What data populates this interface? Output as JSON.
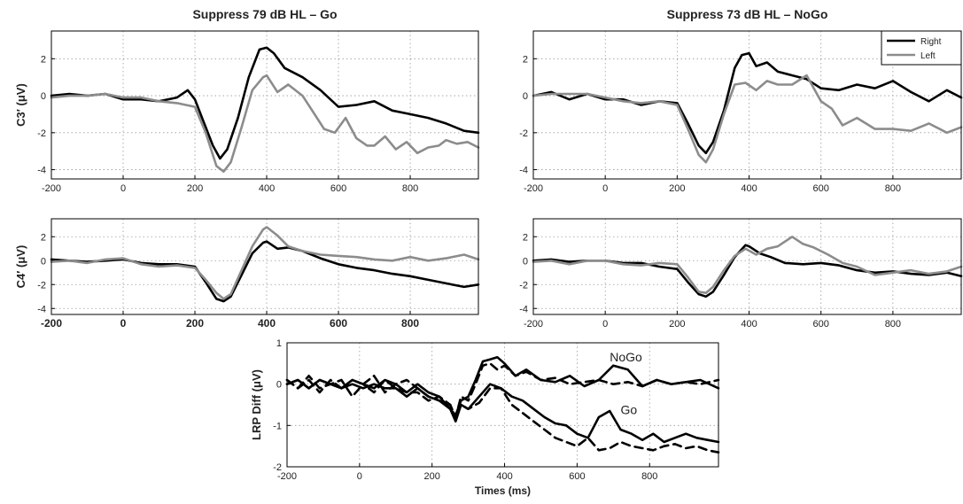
{
  "chart_data": [
    {
      "id": "p1",
      "type": "line",
      "title": "Suppress 79 dB HL – Go",
      "ylabel": "C3′ (μV)",
      "xlim": [
        -200,
        990
      ],
      "ylim": [
        -4.5,
        3.5
      ],
      "xticks": [
        -200,
        0,
        200,
        400,
        600,
        800
      ],
      "yticks": [
        -4,
        -2,
        0,
        2
      ],
      "grid": true,
      "series": [
        {
          "name": "Right",
          "color": "#000000",
          "dash": "solid",
          "x": [
            -200,
            -150,
            -100,
            -50,
            0,
            50,
            100,
            150,
            180,
            200,
            220,
            250,
            270,
            290,
            320,
            350,
            380,
            400,
            420,
            450,
            500,
            550,
            600,
            650,
            700,
            750,
            800,
            850,
            900,
            950,
            990
          ],
          "y": [
            0,
            0.1,
            0,
            0.1,
            -0.2,
            -0.2,
            -0.3,
            -0.1,
            0.3,
            -0.2,
            -1.2,
            -2.7,
            -3.4,
            -2.9,
            -1.2,
            1.0,
            2.5,
            2.6,
            2.3,
            1.5,
            1.0,
            0.3,
            -0.6,
            -0.5,
            -0.3,
            -0.8,
            -1.0,
            -1.2,
            -1.5,
            -1.9,
            -2.0
          ]
        },
        {
          "name": "Left",
          "color": "#8c8c8c",
          "dash": "solid",
          "x": [
            -200,
            -150,
            -100,
            -50,
            0,
            50,
            100,
            150,
            200,
            230,
            260,
            280,
            300,
            330,
            360,
            390,
            400,
            430,
            460,
            500,
            530,
            560,
            590,
            620,
            650,
            680,
            700,
            730,
            760,
            790,
            820,
            850,
            880,
            900,
            930,
            960,
            990
          ],
          "y": [
            -0.1,
            0,
            0,
            0.1,
            -0.1,
            -0.1,
            -0.3,
            -0.4,
            -0.6,
            -2.0,
            -3.8,
            -4.1,
            -3.6,
            -1.7,
            0.3,
            1.0,
            1.1,
            0.2,
            0.6,
            0.0,
            -0.9,
            -1.8,
            -2.0,
            -1.2,
            -2.3,
            -2.7,
            -2.7,
            -2.2,
            -2.9,
            -2.5,
            -3.1,
            -2.8,
            -2.7,
            -2.4,
            -2.6,
            -2.5,
            -2.8
          ]
        }
      ]
    },
    {
      "id": "p2",
      "type": "line",
      "title": "Suppress 73 dB HL – NoGo",
      "xlim": [
        -200,
        990
      ],
      "ylim": [
        -4.5,
        3.5
      ],
      "xticks": [
        -200,
        0,
        200,
        400,
        600,
        800
      ],
      "yticks": [
        -4,
        -2,
        0,
        2
      ],
      "grid": true,
      "legend": {
        "position": "top-right",
        "entries": [
          {
            "label": "Right",
            "color": "#000000"
          },
          {
            "label": "Left",
            "color": "#8c8c8c"
          }
        ]
      },
      "series": [
        {
          "name": "Right",
          "color": "#000000",
          "dash": "solid",
          "x": [
            -200,
            -150,
            -100,
            -50,
            0,
            50,
            100,
            150,
            200,
            230,
            260,
            280,
            300,
            330,
            360,
            380,
            400,
            420,
            450,
            480,
            520,
            560,
            600,
            650,
            700,
            750,
            800,
            850,
            900,
            950,
            990
          ],
          "y": [
            0,
            0.2,
            -0.2,
            0.1,
            -0.2,
            -0.2,
            -0.5,
            -0.3,
            -0.4,
            -1.5,
            -2.7,
            -3.1,
            -2.5,
            -0.8,
            1.5,
            2.2,
            2.3,
            1.6,
            1.8,
            1.3,
            1.1,
            0.9,
            0.4,
            0.3,
            0.6,
            0.4,
            0.8,
            0.2,
            -0.3,
            0.3,
            -0.1
          ]
        },
        {
          "name": "Left",
          "color": "#8c8c8c",
          "dash": "solid",
          "x": [
            -200,
            -150,
            -100,
            -50,
            0,
            50,
            100,
            150,
            200,
            230,
            260,
            280,
            300,
            330,
            360,
            390,
            420,
            450,
            480,
            520,
            560,
            600,
            630,
            660,
            700,
            750,
            800,
            850,
            900,
            950,
            990
          ],
          "y": [
            0,
            0.1,
            0.1,
            0.1,
            -0.1,
            -0.3,
            -0.4,
            -0.3,
            -0.5,
            -1.8,
            -3.2,
            -3.6,
            -2.9,
            -1.0,
            0.6,
            0.7,
            0.3,
            0.8,
            0.6,
            0.6,
            1.1,
            -0.3,
            -0.7,
            -1.6,
            -1.2,
            -1.8,
            -1.8,
            -1.9,
            -1.5,
            -2.0,
            -1.7
          ]
        }
      ]
    },
    {
      "id": "p3",
      "type": "line",
      "ylabel": "C4′ (μV)",
      "xlim": [
        -200,
        990
      ],
      "ylim": [
        -4.5,
        3.5
      ],
      "xticks": [
        -200,
        0,
        200,
        400,
        600,
        800
      ],
      "yticks": [
        -4,
        -2,
        0,
        2
      ],
      "grid": true,
      "series": [
        {
          "name": "Right",
          "color": "#000000",
          "dash": "solid",
          "x": [
            -200,
            -150,
            -100,
            -50,
            0,
            50,
            100,
            150,
            200,
            230,
            260,
            280,
            300,
            330,
            360,
            390,
            400,
            430,
            460,
            500,
            550,
            600,
            650,
            700,
            750,
            800,
            850,
            900,
            950,
            990
          ],
          "y": [
            0.1,
            0,
            -0.1,
            0,
            0.1,
            -0.2,
            -0.3,
            -0.3,
            -0.5,
            -1.8,
            -3.2,
            -3.4,
            -3.0,
            -1.2,
            0.6,
            1.5,
            1.6,
            1.0,
            1.1,
            0.8,
            0.2,
            -0.3,
            -0.6,
            -0.8,
            -1.1,
            -1.3,
            -1.6,
            -1.9,
            -2.2,
            -2.0
          ]
        },
        {
          "name": "Left",
          "color": "#8c8c8c",
          "dash": "solid",
          "x": [
            -200,
            -150,
            -100,
            -50,
            0,
            50,
            100,
            150,
            200,
            230,
            260,
            280,
            300,
            330,
            360,
            390,
            400,
            430,
            460,
            500,
            550,
            600,
            650,
            700,
            750,
            800,
            850,
            900,
            950,
            990
          ],
          "y": [
            -0.1,
            0,
            -0.2,
            0.1,
            0.2,
            -0.3,
            -0.5,
            -0.4,
            -0.6,
            -1.6,
            -2.7,
            -3.2,
            -2.8,
            -0.8,
            1.2,
            2.6,
            2.8,
            2.1,
            1.2,
            0.8,
            0.5,
            0.4,
            0.3,
            0.1,
            0,
            0.3,
            0.0,
            0.2,
            0.5,
            0.1
          ]
        }
      ]
    },
    {
      "id": "p4",
      "type": "line",
      "xlim": [
        -200,
        990
      ],
      "ylim": [
        -4.5,
        3.5
      ],
      "xticks": [
        -200,
        0,
        200,
        400,
        600,
        800
      ],
      "yticks": [
        -4,
        -2,
        0,
        2
      ],
      "grid": true,
      "series": [
        {
          "name": "Right",
          "color": "#000000",
          "dash": "solid",
          "x": [
            -200,
            -150,
            -100,
            -50,
            0,
            50,
            100,
            150,
            200,
            230,
            260,
            280,
            300,
            330,
            360,
            390,
            400,
            430,
            460,
            500,
            550,
            600,
            650,
            700,
            750,
            800,
            850,
            900,
            950,
            990
          ],
          "y": [
            0,
            0.1,
            -0.1,
            0,
            0,
            -0.2,
            -0.2,
            -0.5,
            -0.7,
            -1.8,
            -2.8,
            -3.0,
            -2.6,
            -1.2,
            0.3,
            1.3,
            1.2,
            0.6,
            0.3,
            -0.2,
            -0.3,
            -0.2,
            -0.4,
            -0.8,
            -1.0,
            -0.9,
            -1.1,
            -1.2,
            -1.0,
            -1.3
          ]
        },
        {
          "name": "Left",
          "color": "#8c8c8c",
          "dash": "solid",
          "x": [
            -200,
            -150,
            -100,
            -50,
            0,
            50,
            100,
            150,
            200,
            230,
            260,
            280,
            300,
            330,
            360,
            390,
            420,
            450,
            480,
            510,
            520,
            550,
            580,
            620,
            660,
            700,
            750,
            800,
            850,
            900,
            950,
            990
          ],
          "y": [
            -0.1,
            0,
            -0.3,
            0,
            0,
            -0.3,
            -0.4,
            -0.2,
            -0.3,
            -1.4,
            -2.6,
            -2.7,
            -2.2,
            -0.8,
            0.4,
            1.0,
            0.5,
            1.0,
            1.2,
            1.8,
            2.0,
            1.4,
            1.1,
            0.5,
            -0.2,
            -0.5,
            -1.2,
            -1.0,
            -0.8,
            -1.1,
            -0.9,
            -0.5
          ]
        }
      ]
    },
    {
      "id": "p5",
      "type": "line",
      "xlabel": "Times (ms)",
      "ylabel": "LRP Diff (μV)",
      "xlim": [
        -200,
        990
      ],
      "ylim": [
        -2,
        1
      ],
      "xticks": [
        -200,
        0,
        200,
        400,
        600,
        800
      ],
      "yticks": [
        -2,
        -1,
        0,
        1
      ],
      "grid": true,
      "annotations": [
        {
          "text": "NoGo",
          "x": 690,
          "y": 0.55
        },
        {
          "text": "Go",
          "x": 720,
          "y": -0.72
        }
      ],
      "series": [
        {
          "name": "NoGo",
          "color": "#000000",
          "dash": "solid",
          "x": [
            -200,
            -170,
            -140,
            -110,
            -80,
            -50,
            -20,
            10,
            40,
            70,
            100,
            130,
            160,
            190,
            220,
            250,
            265,
            280,
            300,
            320,
            340,
            360,
            380,
            400,
            430,
            460,
            500,
            540,
            580,
            620,
            660,
            700,
            740,
            780,
            820,
            860,
            900,
            940,
            990
          ],
          "y": [
            0,
            0.1,
            -0.1,
            0.1,
            0,
            -0.1,
            0.1,
            0,
            -0.1,
            0.1,
            0,
            -0.2,
            0,
            -0.2,
            -0.3,
            -0.6,
            -0.75,
            -0.4,
            -0.3,
            0.1,
            0.55,
            0.6,
            0.65,
            0.5,
            0.2,
            0.35,
            0.1,
            0.05,
            0.2,
            -0.05,
            0.1,
            0.45,
            0.35,
            -0.05,
            0.1,
            0,
            0.05,
            0.1,
            -0.1
          ]
        },
        {
          "name": "",
          "color": "#000000",
          "dash": "dashed",
          "x": [
            -200,
            -170,
            -140,
            -110,
            -80,
            -50,
            -20,
            10,
            40,
            70,
            100,
            130,
            160,
            190,
            220,
            250,
            265,
            280,
            300,
            320,
            340,
            360,
            380,
            400,
            430,
            460,
            500,
            540,
            580,
            620,
            660,
            700,
            740,
            780,
            820,
            860,
            900,
            940,
            990
          ],
          "y": [
            0.1,
            -0.1,
            0.2,
            -0.1,
            0,
            0.1,
            -0.3,
            0,
            0.2,
            -0.2,
            0,
            0.1,
            -0.1,
            -0.3,
            -0.4,
            -0.5,
            -0.8,
            -0.3,
            -0.4,
            0.0,
            0.45,
            0.5,
            0.35,
            0.45,
            0.2,
            0.3,
            0.1,
            0.15,
            0.0,
            0.05,
            0.1,
            0.0,
            0.05,
            -0.05,
            0.1,
            0.0,
            0.05,
            0.0,
            0.1
          ]
        },
        {
          "name": "Go",
          "color": "#000000",
          "dash": "solid",
          "x": [
            -200,
            -170,
            -140,
            -110,
            -80,
            -50,
            -20,
            10,
            40,
            70,
            100,
            130,
            160,
            190,
            220,
            250,
            265,
            280,
            300,
            330,
            360,
            390,
            420,
            450,
            480,
            510,
            540,
            570,
            600,
            630,
            660,
            690,
            720,
            750,
            780,
            810,
            840,
            870,
            900,
            930,
            960,
            990
          ],
          "y": [
            0,
            0.1,
            -0.1,
            0.1,
            0,
            -0.1,
            0,
            -0.1,
            0,
            -0.1,
            -0.1,
            -0.3,
            -0.1,
            -0.3,
            -0.4,
            -0.6,
            -0.9,
            -0.5,
            -0.6,
            -0.3,
            0.0,
            -0.1,
            -0.3,
            -0.4,
            -0.6,
            -0.8,
            -0.95,
            -1.0,
            -1.2,
            -1.3,
            -0.8,
            -0.65,
            -1.1,
            -1.2,
            -1.35,
            -1.2,
            -1.4,
            -1.3,
            -1.2,
            -1.3,
            -1.35,
            -1.4
          ]
        },
        {
          "name": "",
          "color": "#000000",
          "dash": "dashed",
          "x": [
            -200,
            -170,
            -140,
            -110,
            -80,
            -50,
            -20,
            10,
            40,
            70,
            100,
            130,
            160,
            190,
            220,
            250,
            265,
            280,
            300,
            330,
            360,
            390,
            420,
            450,
            480,
            510,
            540,
            570,
            600,
            630,
            660,
            690,
            720,
            750,
            780,
            810,
            840,
            870,
            900,
            930,
            960,
            990
          ],
          "y": [
            0.1,
            -0.1,
            0.1,
            -0.2,
            0.1,
            -0.1,
            0.1,
            0,
            -0.2,
            0.1,
            -0.1,
            -0.2,
            -0.2,
            -0.4,
            -0.3,
            -0.5,
            -0.85,
            -0.5,
            -0.6,
            -0.45,
            -0.1,
            -0.1,
            -0.5,
            -0.7,
            -0.9,
            -1.1,
            -1.3,
            -1.4,
            -1.5,
            -1.3,
            -1.6,
            -1.55,
            -1.4,
            -1.5,
            -1.55,
            -1.6,
            -1.5,
            -1.45,
            -1.55,
            -1.5,
            -1.6,
            -1.65
          ]
        }
      ]
    }
  ]
}
